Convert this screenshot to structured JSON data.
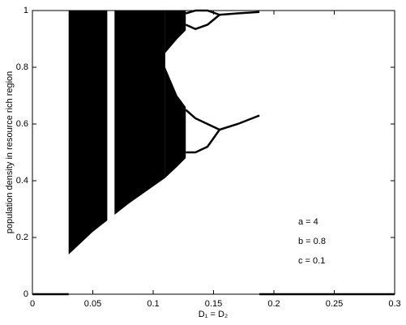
{
  "chart_data": {
    "type": "bifurcation",
    "xlabel": "D₁ = D₂",
    "ylabel": "population density in resource rich region",
    "annotations": [
      "a = 4",
      "b = 0.8",
      "c = 0.1"
    ],
    "xlim": [
      0,
      0.3
    ],
    "ylim": [
      0,
      1
    ],
    "xticks": [
      0,
      0.05,
      0.1,
      0.15,
      0.2,
      0.25,
      0.3
    ],
    "yticks": [
      0,
      0.2,
      0.4,
      0.6,
      0.8,
      1
    ],
    "color": "#000000",
    "bands": [
      {
        "x": [
          0.03,
          0.04,
          0.05,
          0.062
        ],
        "low": [
          0.14,
          0.18,
          0.22,
          0.26
        ],
        "high": [
          1,
          1,
          1,
          1
        ]
      },
      {
        "x": [
          0.068,
          0.08,
          0.09,
          0.1,
          0.11
        ],
        "low": [
          0.28,
          0.32,
          0.35,
          0.38,
          0.41
        ],
        "high": [
          1,
          1,
          1,
          1,
          1
        ]
      },
      {
        "x": [
          0.11,
          0.12,
          0.127
        ],
        "low": [
          0.85,
          0.9,
          0.93
        ],
        "high": [
          1,
          1,
          1
        ]
      },
      {
        "x": [
          0.11,
          0.12,
          0.127
        ],
        "low": [
          0.41,
          0.45,
          0.48
        ],
        "high": [
          0.8,
          0.7,
          0.66
        ]
      }
    ],
    "series": [
      {
        "x": [
          0,
          0.03
        ],
        "values": [
          0,
          0
        ]
      },
      {
        "x": [
          0.188,
          0.3
        ],
        "values": [
          0,
          0
        ]
      },
      {
        "x": [
          0.127,
          0.135,
          0.145,
          0.155,
          0.17,
          0.188
        ],
        "values": [
          0.95,
          0.935,
          0.95,
          0.985,
          0.99,
          0.995
        ]
      },
      {
        "x": [
          0.127,
          0.135,
          0.145,
          0.155
        ],
        "values": [
          0.99,
          1,
          1,
          0.985
        ]
      },
      {
        "x": [
          0.127,
          0.135,
          0.145,
          0.155,
          0.17,
          0.188
        ],
        "values": [
          0.65,
          0.62,
          0.6,
          0.58,
          0.6,
          0.63
        ]
      },
      {
        "x": [
          0.127,
          0.135,
          0.145,
          0.155
        ],
        "values": [
          0.5,
          0.5,
          0.52,
          0.58
        ]
      }
    ]
  }
}
